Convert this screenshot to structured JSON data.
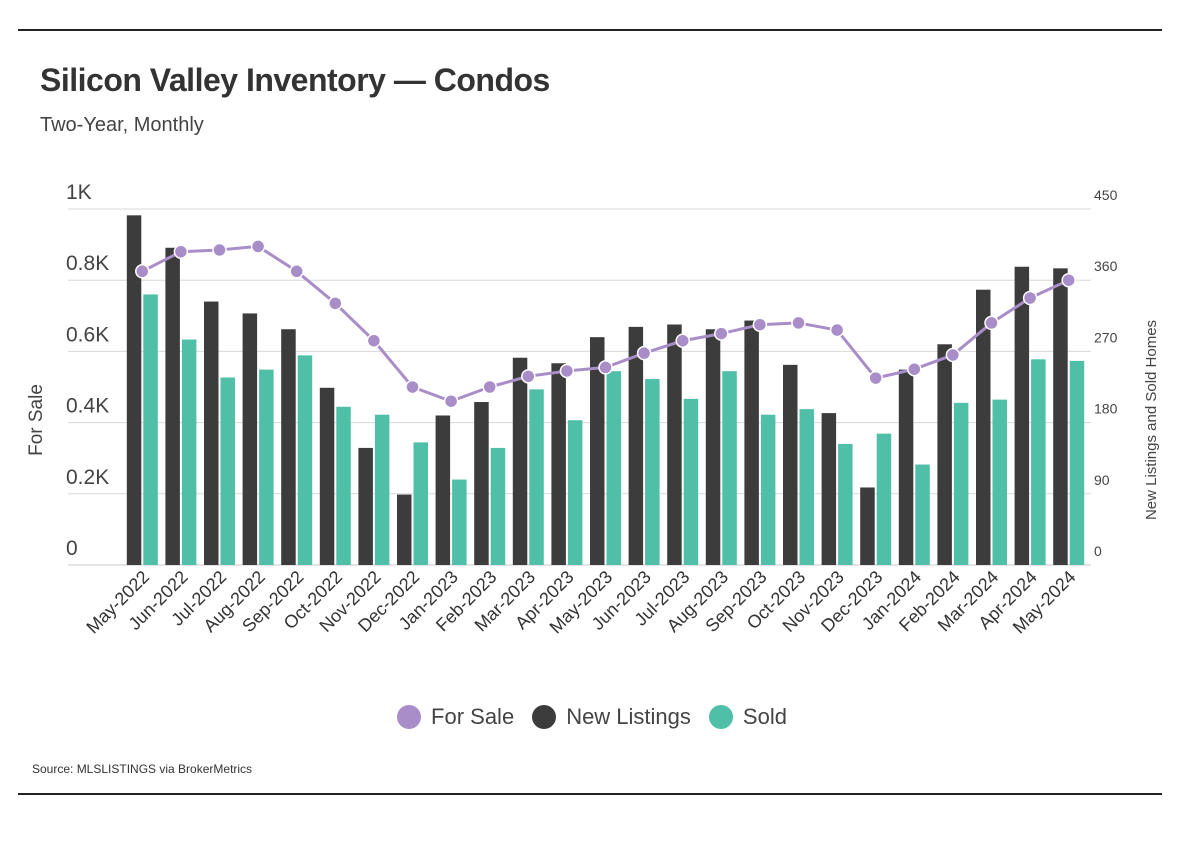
{
  "header": {
    "title": "Silicon Valley Inventory — Condos",
    "subtitle": "Two-Year, Monthly"
  },
  "footer": {
    "source": "Source:  MLSLISTINGS via BrokerMetrics"
  },
  "colors": {
    "for_sale": "#a98dc9",
    "new_listings": "#3c3c3c",
    "sold": "#4fbfa8",
    "grid": "#d8d8d8"
  },
  "chart_data": {
    "type": "bar",
    "title": "Silicon Valley Inventory — Condos",
    "subtitle": "Two-Year, Monthly",
    "categories": [
      "May-2022",
      "Jun-2022",
      "Jul-2022",
      "Aug-2022",
      "Sep-2022",
      "Oct-2022",
      "Nov-2022",
      "Dec-2022",
      "Jan-2023",
      "Feb-2023",
      "Mar-2023",
      "Apr-2023",
      "May-2023",
      "Jun-2023",
      "Jul-2023",
      "Aug-2023",
      "Sep-2023",
      "Oct-2023",
      "Nov-2023",
      "Dec-2023",
      "Jan-2024",
      "Feb-2024",
      "Mar-2024",
      "Apr-2024",
      "May-2024"
    ],
    "ylabel_left": "For Sale",
    "ylabel_right": "New Listings and Sold Homes",
    "ylim_left": [
      0,
      1000
    ],
    "ylim_right": [
      0,
      450
    ],
    "yticks_left": [
      "0",
      "0.2K",
      "0.4K",
      "0.6K",
      "0.8K",
      "1K"
    ],
    "yticks_right": [
      "0",
      "90",
      "180",
      "270",
      "360",
      "450"
    ],
    "grid": true,
    "legend_position": "bottom",
    "series": [
      {
        "name": "For Sale",
        "type": "line",
        "axis": "left",
        "values": [
          825,
          880,
          885,
          895,
          825,
          735,
          630,
          500,
          460,
          500,
          530,
          545,
          555,
          595,
          630,
          650,
          675,
          680,
          660,
          525,
          550,
          590,
          680,
          750,
          800
        ]
      },
      {
        "name": "New Listings",
        "type": "bar",
        "axis": "right",
        "values": [
          442,
          401,
          333,
          318,
          298,
          224,
          148,
          89,
          189,
          206,
          262,
          255,
          288,
          301,
          304,
          298,
          309,
          253,
          192,
          98,
          247,
          279,
          348,
          377,
          375
        ]
      },
      {
        "name": "Sold",
        "type": "bar",
        "axis": "right",
        "values": [
          342,
          285,
          237,
          247,
          265,
          200,
          190,
          155,
          108,
          148,
          222,
          183,
          245,
          235,
          210,
          245,
          190,
          197,
          153,
          166,
          127,
          205,
          209,
          260,
          258
        ]
      }
    ]
  }
}
